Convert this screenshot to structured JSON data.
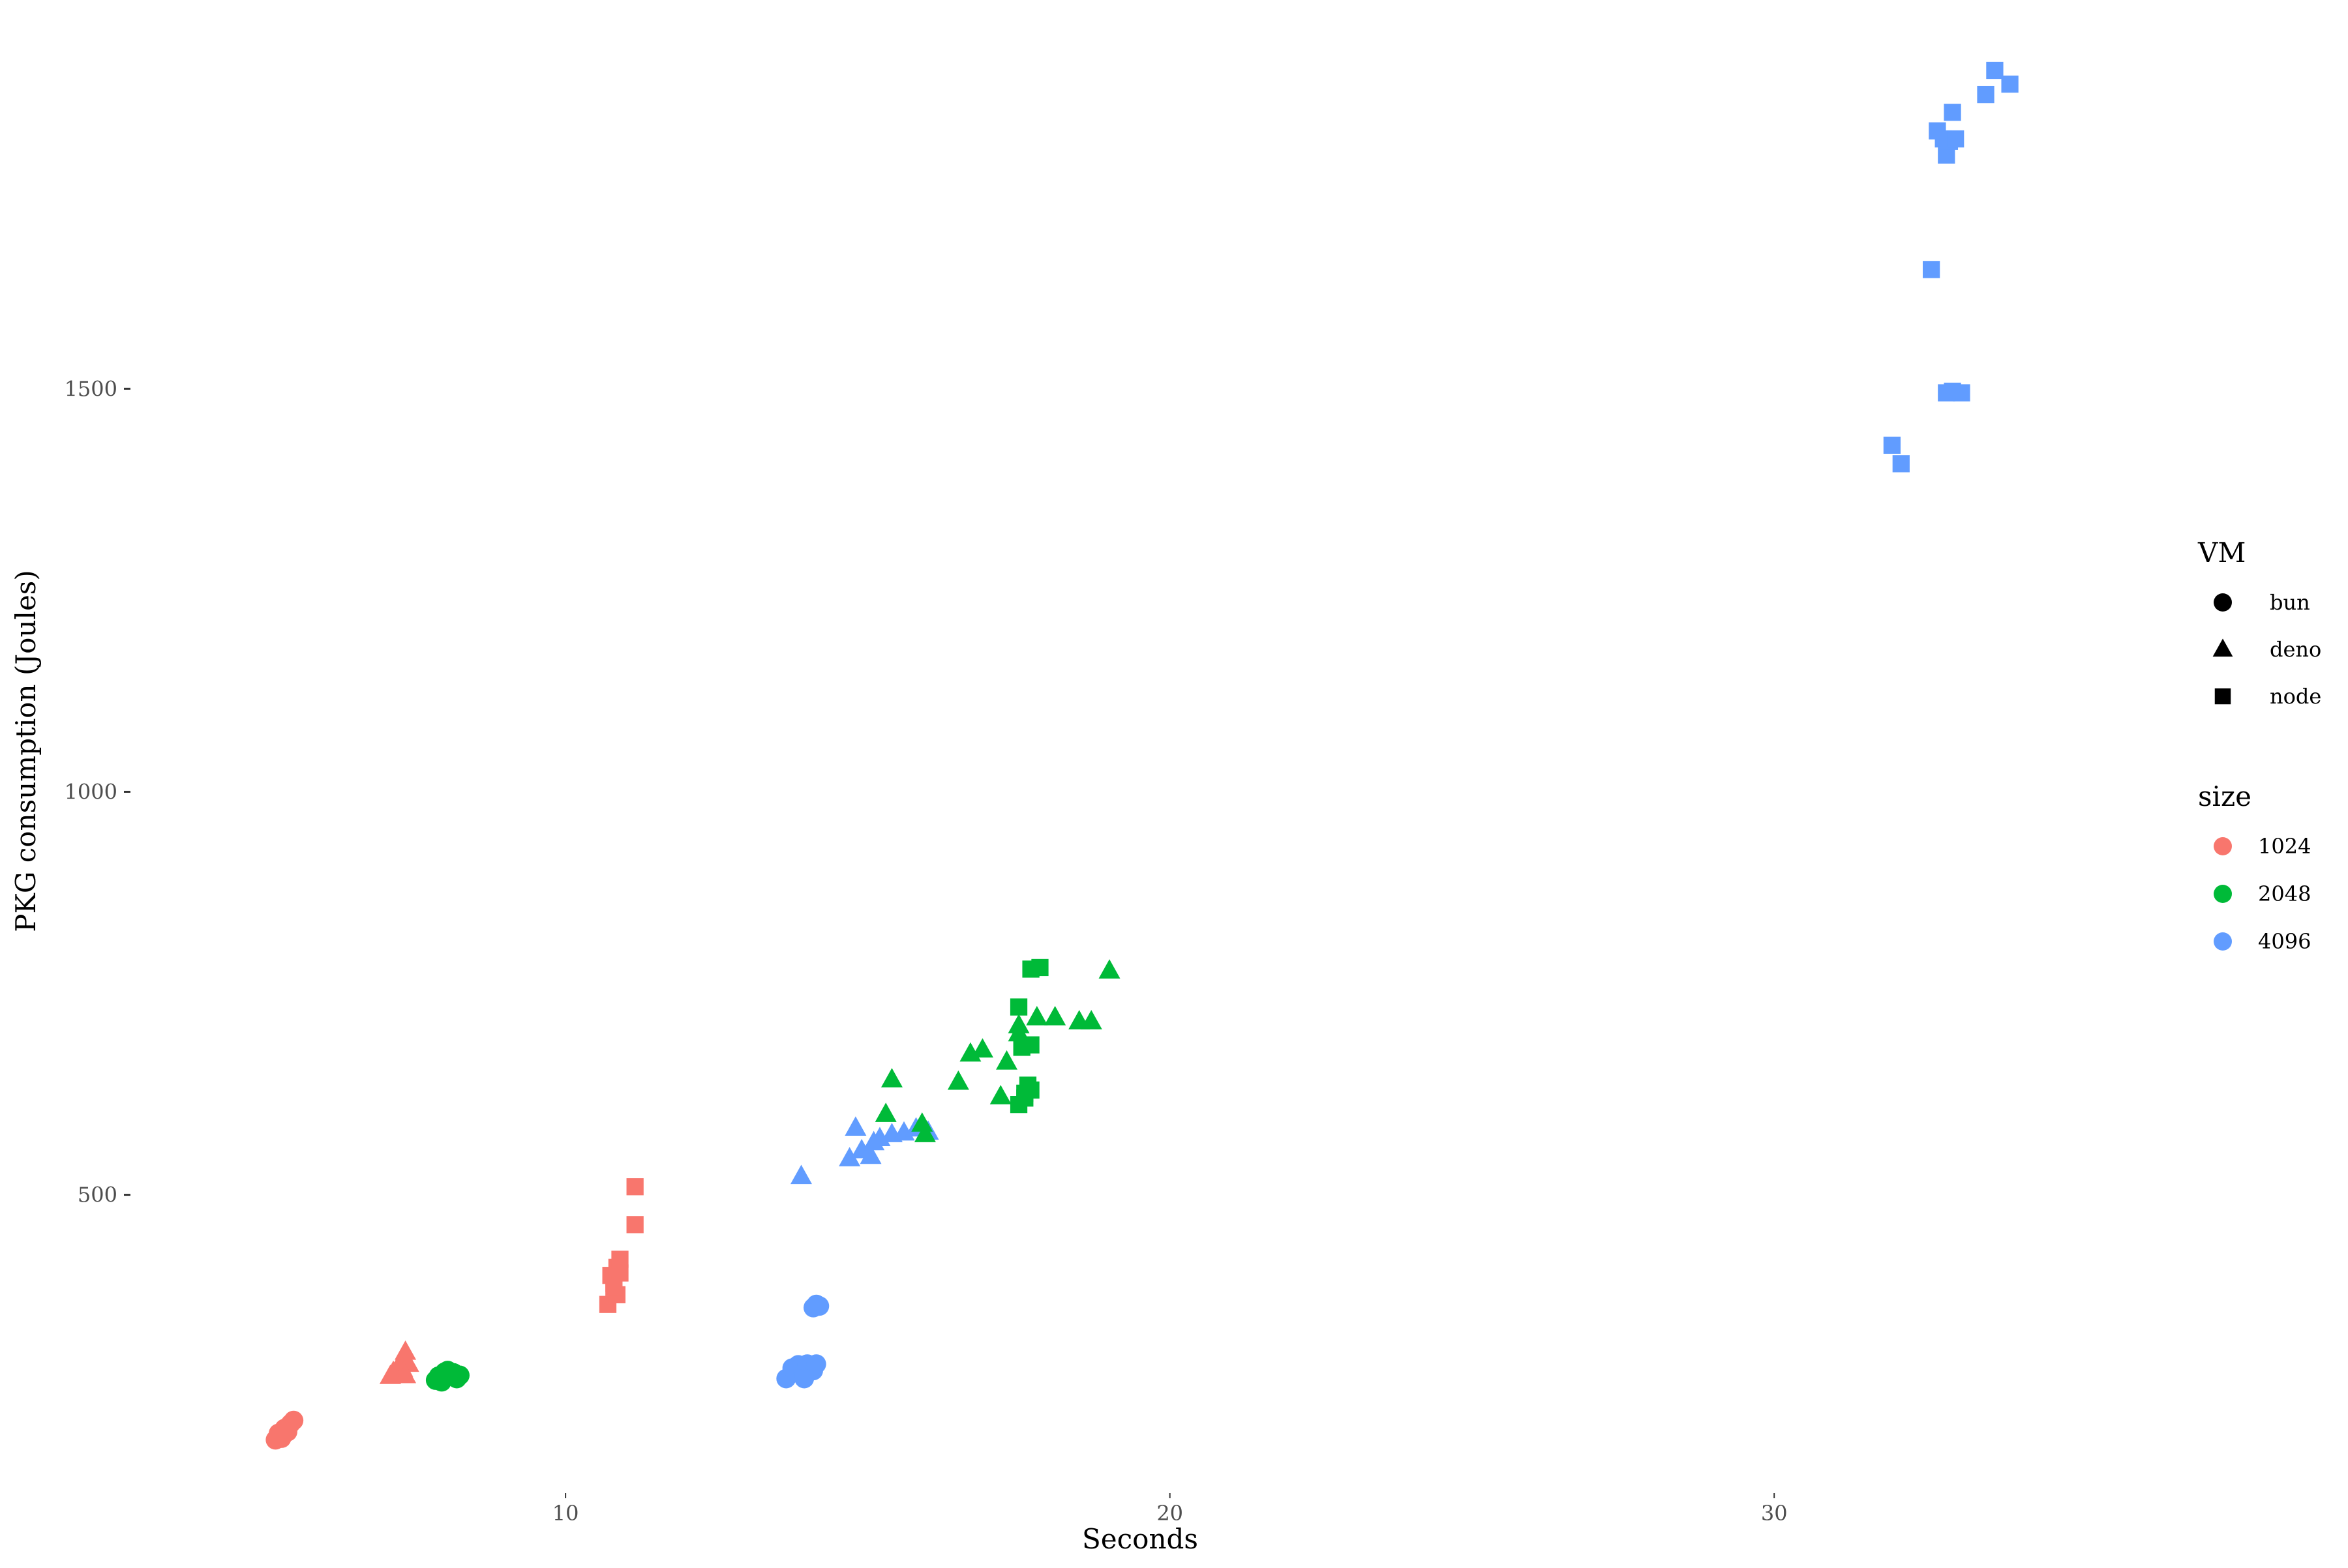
{
  "chart_data": {
    "type": "scatter",
    "xlabel": "Seconds",
    "ylabel": "PKG consumption (Joules)",
    "xlim": [
      2.8,
      38.2
    ],
    "ylim": [
      130,
      1950
    ],
    "x_ticks": [
      10,
      20,
      30
    ],
    "y_ticks": [
      500,
      1000,
      1500
    ],
    "grid": false,
    "legend_position": "right",
    "legends": {
      "shape": {
        "title": "VM",
        "entries": [
          {
            "label": "bun",
            "shape": "circle"
          },
          {
            "label": "deno",
            "shape": "triangle"
          },
          {
            "label": "node",
            "shape": "square"
          }
        ]
      },
      "color": {
        "title": "size",
        "entries": [
          {
            "label": "1024",
            "color": "#F8766D"
          },
          {
            "label": "2048",
            "color": "#00BA38"
          },
          {
            "label": "4096",
            "color": "#619CFF"
          }
        ]
      }
    },
    "series": [
      {
        "vm": "bun",
        "size": "1024",
        "points": [
          [
            5.2,
            196
          ],
          [
            5.3,
            200
          ],
          [
            5.25,
            204
          ],
          [
            5.35,
            208
          ],
          [
            5.4,
            212
          ],
          [
            5.3,
            198
          ],
          [
            5.45,
            216
          ],
          [
            5.5,
            220
          ],
          [
            5.35,
            210
          ],
          [
            5.4,
            206
          ]
        ]
      },
      {
        "vm": "deno",
        "size": "1024",
        "points": [
          [
            7.1,
            275
          ],
          [
            7.2,
            282
          ],
          [
            7.25,
            288
          ],
          [
            7.3,
            296
          ],
          [
            7.35,
            305
          ],
          [
            7.2,
            278
          ],
          [
            7.3,
            284
          ],
          [
            7.15,
            280
          ],
          [
            7.4,
            290
          ],
          [
            7.35,
            276
          ]
        ]
      },
      {
        "vm": "bun",
        "size": "2048",
        "points": [
          [
            7.85,
            270
          ],
          [
            7.9,
            275
          ],
          [
            8.0,
            280
          ],
          [
            8.1,
            276
          ],
          [
            8.2,
            272
          ],
          [
            7.95,
            268
          ],
          [
            8.05,
            282
          ],
          [
            8.15,
            279
          ],
          [
            7.9,
            274
          ],
          [
            8.25,
            276
          ]
        ]
      },
      {
        "vm": "node",
        "size": "1024",
        "points": [
          [
            10.7,
            364
          ],
          [
            10.85,
            376
          ],
          [
            10.8,
            390
          ],
          [
            10.75,
            400
          ],
          [
            10.9,
            403
          ],
          [
            10.85,
            410
          ],
          [
            10.9,
            420
          ],
          [
            11.15,
            463
          ],
          [
            11.15,
            510
          ],
          [
            10.8,
            385
          ]
        ]
      },
      {
        "vm": "bun",
        "size": "4096",
        "points": [
          [
            13.65,
            272
          ],
          [
            13.75,
            285
          ],
          [
            13.85,
            289
          ],
          [
            13.95,
            278
          ],
          [
            14.0,
            290
          ],
          [
            14.1,
            282
          ],
          [
            14.15,
            290
          ],
          [
            13.95,
            272
          ],
          [
            14.1,
            360
          ],
          [
            14.2,
            362
          ],
          [
            14.15,
            364
          ]
        ]
      },
      {
        "vm": "deno",
        "size": "4096",
        "points": [
          [
            13.9,
            523
          ],
          [
            14.7,
            545
          ],
          [
            14.9,
            555
          ],
          [
            15.1,
            565
          ],
          [
            15.2,
            570
          ],
          [
            14.8,
            583
          ],
          [
            15.4,
            575
          ],
          [
            15.6,
            577
          ],
          [
            15.8,
            582
          ],
          [
            16.0,
            578
          ],
          [
            15.05,
            548
          ]
        ]
      },
      {
        "vm": "deno",
        "size": "2048",
        "points": [
          [
            15.3,
            600
          ],
          [
            15.4,
            643
          ],
          [
            15.9,
            588
          ],
          [
            15.95,
            575
          ],
          [
            16.5,
            640
          ],
          [
            16.7,
            675
          ],
          [
            16.9,
            680
          ],
          [
            17.2,
            622
          ],
          [
            17.3,
            665
          ],
          [
            17.5,
            710
          ],
          [
            17.8,
            720
          ],
          [
            18.1,
            720
          ],
          [
            18.5,
            715
          ],
          [
            18.7,
            715
          ],
          [
            19.0,
            778
          ],
          [
            17.5,
            700
          ]
        ]
      },
      {
        "vm": "node",
        "size": "2048",
        "points": [
          [
            17.5,
            612
          ],
          [
            17.6,
            620
          ],
          [
            17.7,
            630
          ],
          [
            17.65,
            636
          ],
          [
            17.55,
            683
          ],
          [
            17.7,
            686
          ],
          [
            17.5,
            733
          ],
          [
            17.7,
            780
          ],
          [
            17.85,
            782
          ],
          [
            17.6,
            626
          ]
        ]
      },
      {
        "vm": "node",
        "size": "4096",
        "points": [
          [
            31.95,
            1430
          ],
          [
            32.1,
            1407
          ],
          [
            32.6,
            1648
          ],
          [
            32.7,
            1820
          ],
          [
            32.8,
            1810
          ],
          [
            32.85,
            1790
          ],
          [
            32.9,
            1807
          ],
          [
            32.95,
            1843
          ],
          [
            33.0,
            1810
          ],
          [
            32.85,
            1495
          ],
          [
            32.95,
            1497
          ],
          [
            33.1,
            1495
          ],
          [
            33.5,
            1865
          ],
          [
            33.65,
            1895
          ],
          [
            33.9,
            1878
          ]
        ]
      }
    ]
  }
}
